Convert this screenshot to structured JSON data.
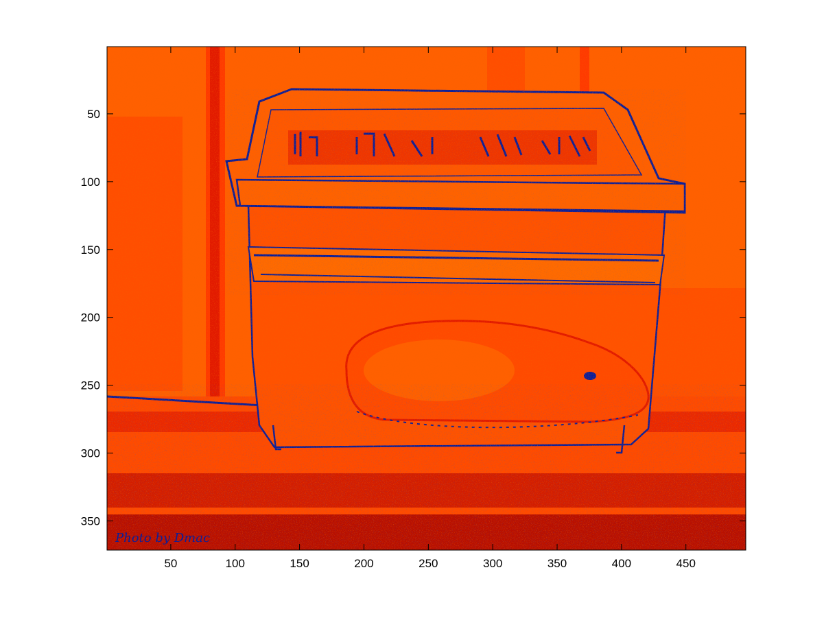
{
  "figure": {
    "background": "#ffffff",
    "colors": {
      "orange": "#ff6000",
      "red_orange": "#ff3a00",
      "red": "#e21a00",
      "dark_red": "#b80f00",
      "navy": "#0a1f9a",
      "deep_blue": "#0015a0"
    }
  },
  "axes": {
    "x_range": [
      0.5,
      496.5
    ],
    "y_range": [
      0.5,
      371.5
    ],
    "y_direction": "reverse",
    "x_ticks": [
      50,
      100,
      150,
      200,
      250,
      300,
      350,
      400,
      450
    ],
    "y_ticks": [
      50,
      100,
      150,
      200,
      250,
      300,
      350
    ],
    "x_tick_labels": [
      "50",
      "100",
      "150",
      "200",
      "250",
      "300",
      "350",
      "400",
      "450"
    ],
    "y_tick_labels": [
      "50",
      "100",
      "150",
      "200",
      "250",
      "300",
      "350"
    ]
  },
  "image": {
    "description_icon": "false-color-hamster-in-plastic-cage",
    "watermark_text": "Photo by Dmac"
  }
}
